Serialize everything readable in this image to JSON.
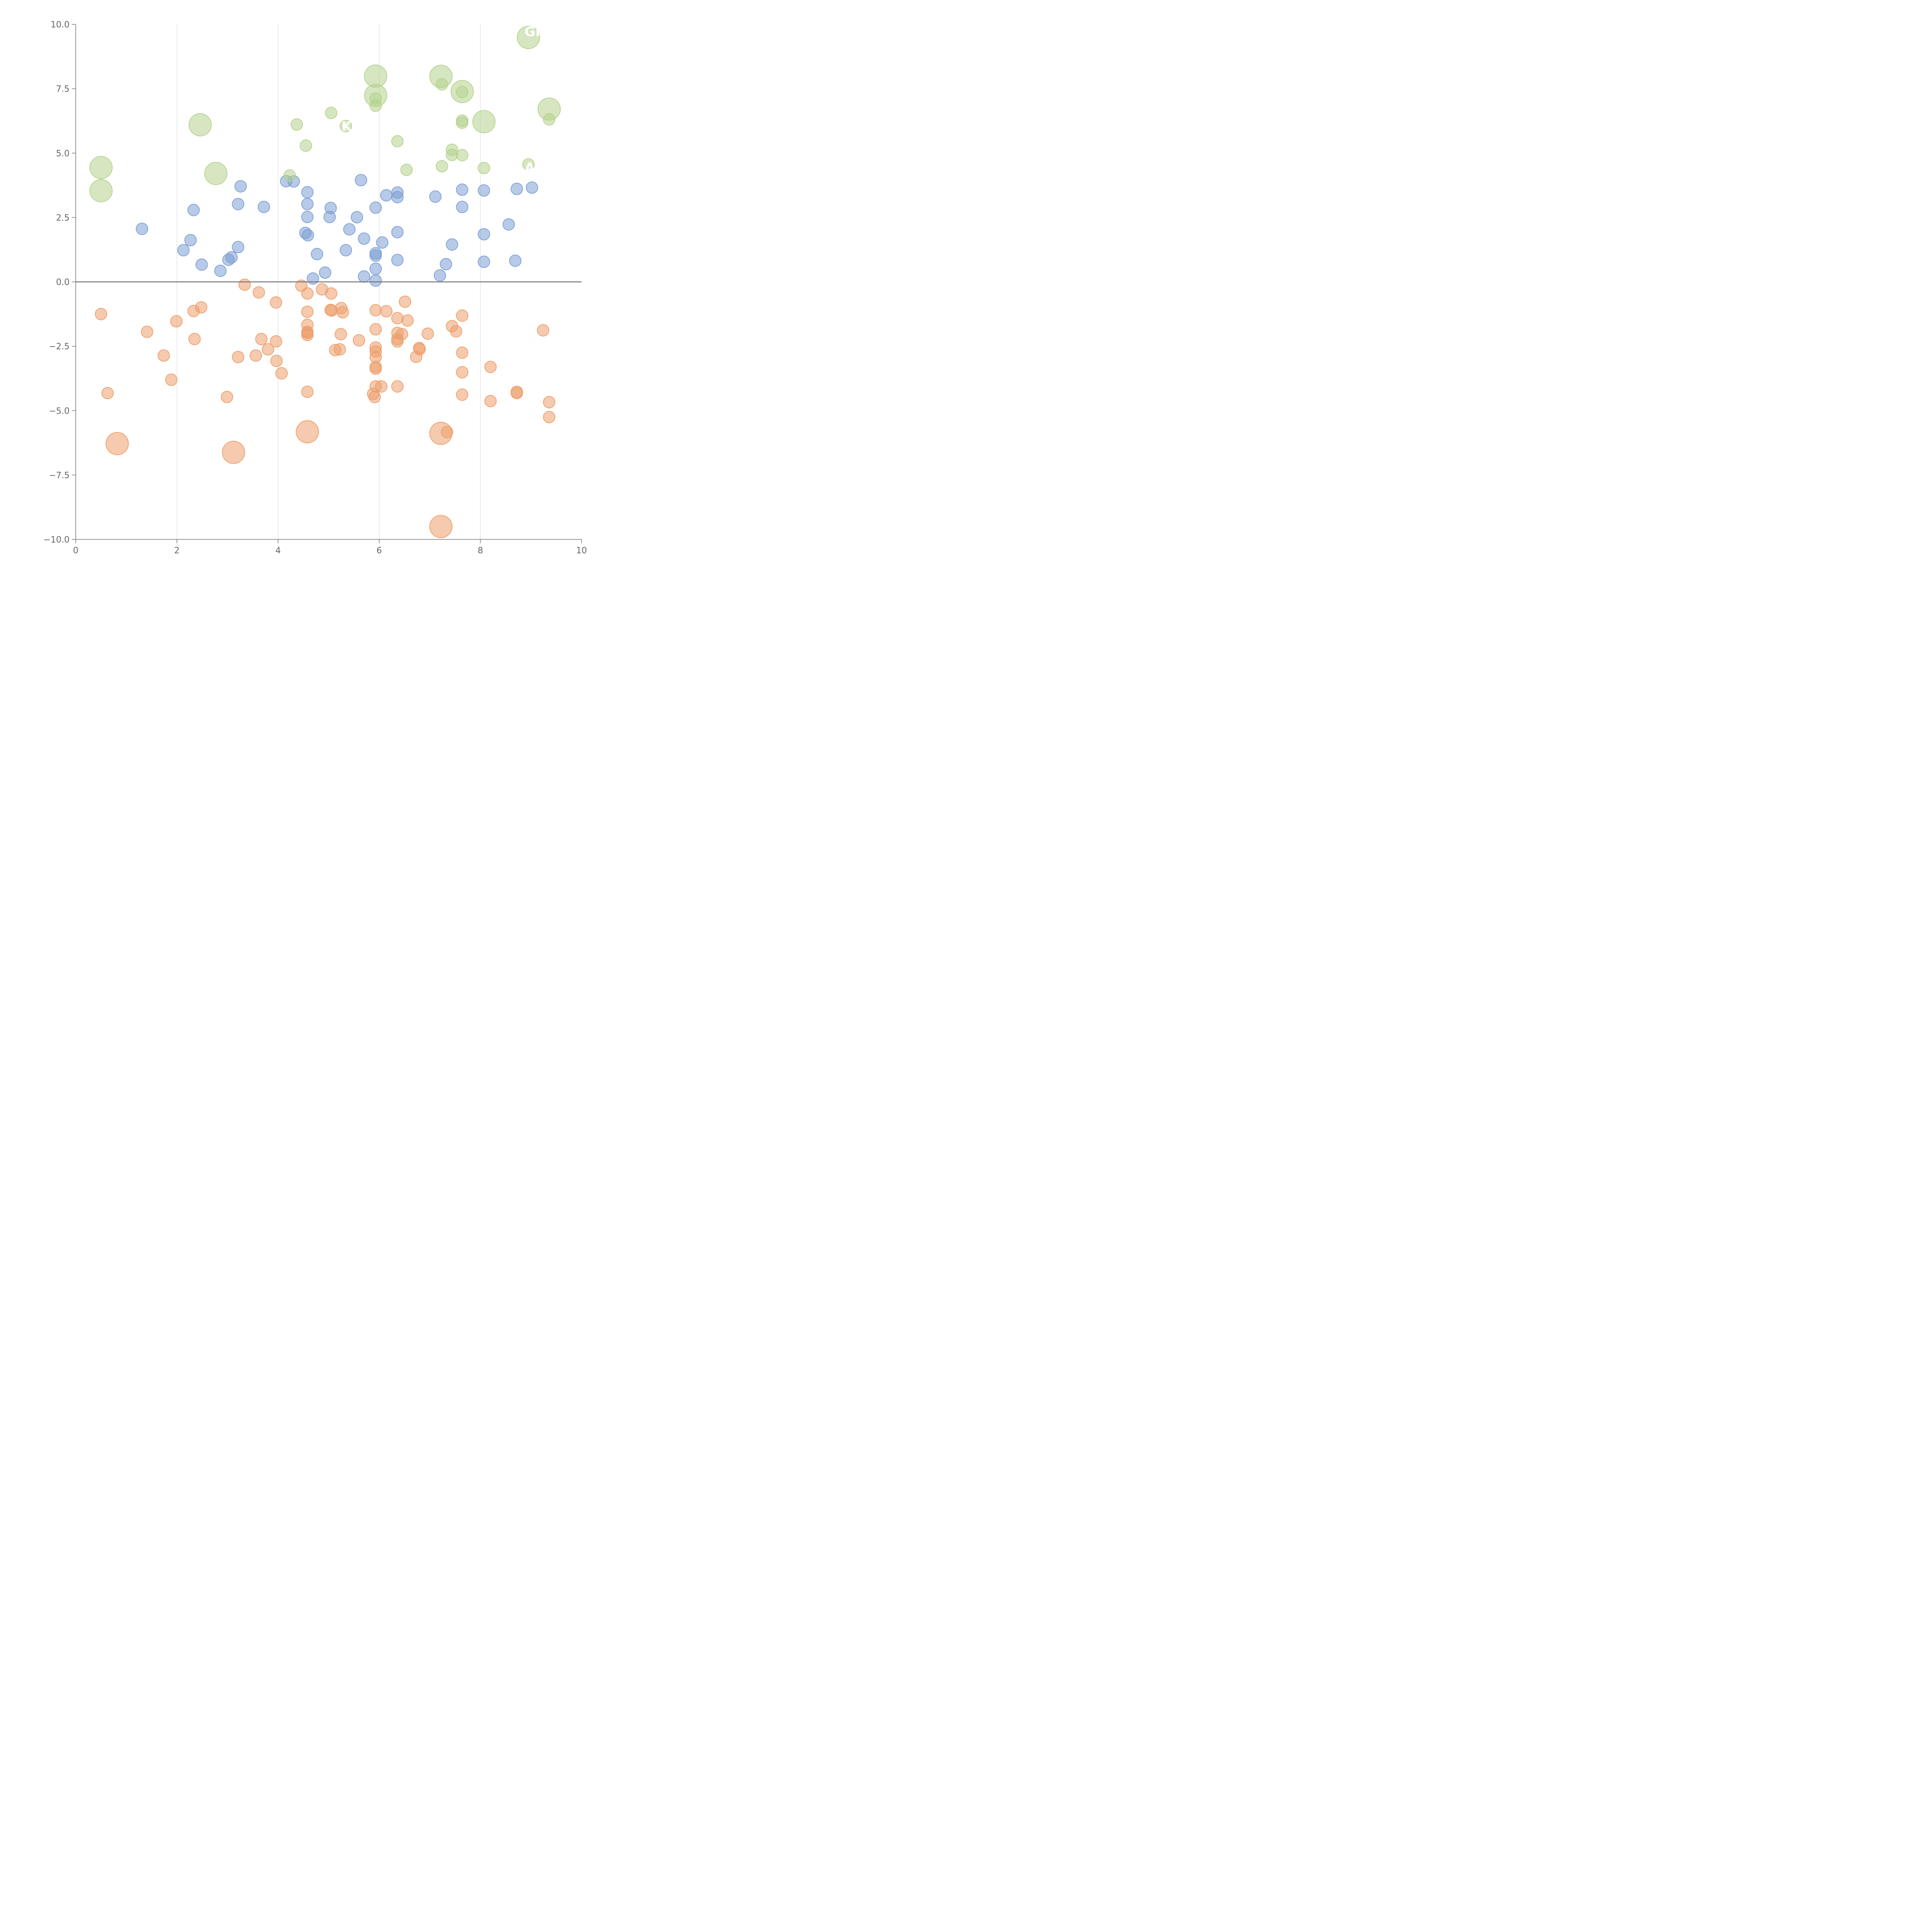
{
  "chart_data": {
    "type": "scatter",
    "title": "",
    "xlabel": "",
    "ylabel": "",
    "xlim": [
      0,
      10
    ],
    "ylim": [
      -10,
      10
    ],
    "x_ticks": [
      {
        "value": 0,
        "label": "0"
      },
      {
        "value": 2,
        "label": "2"
      },
      {
        "value": 4,
        "label": "4"
      },
      {
        "value": 6,
        "label": "6"
      },
      {
        "value": 8,
        "label": "8"
      },
      {
        "value": 10,
        "label": "10"
      }
    ],
    "y_ticks": [
      {
        "value": 10,
        "label": "10.0"
      },
      {
        "value": 7.5,
        "label": "7.5"
      },
      {
        "value": 5,
        "label": "5.0"
      },
      {
        "value": 2.5,
        "label": "2.5"
      },
      {
        "value": 0,
        "label": "0.0"
      },
      {
        "value": -2.5,
        "label": "−2.5"
      },
      {
        "value": -5,
        "label": "−5.0"
      },
      {
        "value": -7.5,
        "label": "−7.5"
      },
      {
        "value": -10,
        "label": "−10.0"
      }
    ],
    "grid": "vertical",
    "zero_line": true,
    "colors": {
      "blue": "#7c9fd4",
      "green": "#b5d18c",
      "orange": "#ec9f6c",
      "axis": "#777777",
      "grid": "#dddddd"
    },
    "annotations": [
      {
        "text": "GI",
        "x": 8.95,
        "y": 9.72
      },
      {
        "text": "K",
        "x": 5.33,
        "y": 6.05
      },
      {
        "text": "A",
        "x": 8.95,
        "y": 4.44
      }
    ],
    "series": [
      {
        "name": "blue",
        "color": "#7c9fd4",
        "size": "small",
        "points": [
          [
            1.31,
            2.06
          ],
          [
            2.13,
            1.23
          ],
          [
            2.27,
            1.62
          ],
          [
            2.33,
            2.79
          ],
          [
            2.49,
            0.67
          ],
          [
            2.86,
            0.43
          ],
          [
            3.02,
            0.86
          ],
          [
            3.08,
            0.95
          ],
          [
            3.21,
            1.35
          ],
          [
            3.21,
            3.02
          ],
          [
            3.26,
            3.71
          ],
          [
            3.72,
            2.91
          ],
          [
            4.16,
            3.91
          ],
          [
            4.31,
            3.9
          ],
          [
            4.54,
            1.9
          ],
          [
            4.58,
            3.48
          ],
          [
            4.58,
            3.02
          ],
          [
            4.58,
            2.52
          ],
          [
            4.59,
            1.81
          ],
          [
            4.69,
            0.13
          ],
          [
            4.77,
            1.08
          ],
          [
            4.93,
            0.36
          ],
          [
            5.02,
            2.52
          ],
          [
            5.04,
            2.87
          ],
          [
            5.34,
            1.23
          ],
          [
            5.41,
            2.04
          ],
          [
            5.56,
            2.51
          ],
          [
            5.64,
            3.95
          ],
          [
            5.7,
            1.68
          ],
          [
            5.7,
            0.21
          ],
          [
            5.93,
            2.88
          ],
          [
            5.93,
            1.11
          ],
          [
            5.93,
            1.02
          ],
          [
            5.93,
            0.51
          ],
          [
            5.93,
            0.05
          ],
          [
            6.06,
            1.53
          ],
          [
            6.14,
            3.36
          ],
          [
            6.36,
            3.47
          ],
          [
            6.36,
            3.29
          ],
          [
            6.36,
            1.93
          ],
          [
            6.36,
            0.85
          ],
          [
            7.11,
            3.31
          ],
          [
            7.2,
            0.25
          ],
          [
            7.32,
            0.69
          ],
          [
            7.44,
            1.45
          ],
          [
            7.64,
            3.58
          ],
          [
            7.64,
            2.91
          ],
          [
            8.07,
            3.55
          ],
          [
            8.07,
            1.85
          ],
          [
            8.07,
            0.78
          ],
          [
            8.56,
            2.23
          ],
          [
            8.69,
            0.82
          ],
          [
            8.72,
            3.61
          ],
          [
            9.02,
            3.66
          ]
        ]
      },
      {
        "name": "green",
        "color": "#b5d18c",
        "size": "mixed",
        "points": [
          [
            0.5,
            4.44,
            "L"
          ],
          [
            0.5,
            3.54,
            "L"
          ],
          [
            2.46,
            6.1,
            "L"
          ],
          [
            2.77,
            4.21,
            "L"
          ],
          [
            4.23,
            4.13,
            "S"
          ],
          [
            4.37,
            6.11,
            "S"
          ],
          [
            4.55,
            5.29,
            "S"
          ],
          [
            5.05,
            6.56,
            "S"
          ],
          [
            5.34,
            6.05,
            "S"
          ],
          [
            5.93,
            7.99,
            "L"
          ],
          [
            5.93,
            7.24,
            "L"
          ],
          [
            5.93,
            7.12,
            "S"
          ],
          [
            5.93,
            6.84,
            "S"
          ],
          [
            6.36,
            5.46,
            "S"
          ],
          [
            6.54,
            4.35,
            "S"
          ],
          [
            7.22,
            7.98,
            "L"
          ],
          [
            7.24,
            7.67,
            "S"
          ],
          [
            7.24,
            4.49,
            "S"
          ],
          [
            7.44,
            5.13,
            "S"
          ],
          [
            7.44,
            4.93,
            "S"
          ],
          [
            7.64,
            7.39,
            "L"
          ],
          [
            7.64,
            7.37,
            "S"
          ],
          [
            7.64,
            6.26,
            "S"
          ],
          [
            7.64,
            6.18,
            "S"
          ],
          [
            7.64,
            4.92,
            "S"
          ],
          [
            8.07,
            6.22,
            "L"
          ],
          [
            8.07,
            4.42,
            "S"
          ],
          [
            8.95,
            9.49,
            "L"
          ],
          [
            8.95,
            4.56,
            "S"
          ],
          [
            9.36,
            6.71,
            "L"
          ],
          [
            9.36,
            6.31,
            "S"
          ]
        ]
      },
      {
        "name": "orange",
        "color": "#ec9f6c",
        "size": "mixed",
        "points": [
          [
            0.5,
            -1.25,
            "S"
          ],
          [
            0.63,
            -4.32,
            "S"
          ],
          [
            0.82,
            -6.28,
            "L"
          ],
          [
            1.41,
            -1.94,
            "S"
          ],
          [
            1.74,
            -2.86,
            "S"
          ],
          [
            1.89,
            -3.8,
            "S"
          ],
          [
            1.99,
            -1.53,
            "S"
          ],
          [
            2.33,
            -1.13,
            "S"
          ],
          [
            2.35,
            -2.22,
            "S"
          ],
          [
            2.48,
            -0.99,
            "S"
          ],
          [
            2.99,
            -4.47,
            "S"
          ],
          [
            3.12,
            -6.62,
            "L"
          ],
          [
            3.21,
            -2.92,
            "S"
          ],
          [
            3.34,
            -0.11,
            "S"
          ],
          [
            3.56,
            -2.86,
            "S"
          ],
          [
            3.62,
            -0.41,
            "S"
          ],
          [
            3.67,
            -2.22,
            "S"
          ],
          [
            3.8,
            -2.62,
            "S"
          ],
          [
            3.96,
            -0.8,
            "S"
          ],
          [
            3.96,
            -2.31,
            "S"
          ],
          [
            3.97,
            -3.07,
            "S"
          ],
          [
            4.07,
            -3.55,
            "S"
          ],
          [
            4.46,
            -0.15,
            "S"
          ],
          [
            4.58,
            -0.45,
            "S"
          ],
          [
            4.58,
            -1.16,
            "S"
          ],
          [
            4.58,
            -1.67,
            "S"
          ],
          [
            4.58,
            -1.94,
            "S"
          ],
          [
            4.58,
            -2.06,
            "S"
          ],
          [
            4.58,
            -1.98,
            "S"
          ],
          [
            4.58,
            -4.27,
            "S"
          ],
          [
            4.58,
            -5.82,
            "L"
          ],
          [
            4.87,
            -0.29,
            "S"
          ],
          [
            5.04,
            -1.09,
            "S"
          ],
          [
            5.06,
            -1.11,
            "S"
          ],
          [
            5.05,
            -0.45,
            "S"
          ],
          [
            5.13,
            -2.65,
            "S"
          ],
          [
            5.22,
            -2.62,
            "S"
          ],
          [
            5.24,
            -2.03,
            "S"
          ],
          [
            5.25,
            -1.02,
            "S"
          ],
          [
            5.28,
            -1.18,
            "S"
          ],
          [
            5.6,
            -2.27,
            "S"
          ],
          [
            5.88,
            -4.35,
            "S"
          ],
          [
            5.91,
            -4.47,
            "S"
          ],
          [
            5.93,
            -1.1,
            "S"
          ],
          [
            5.93,
            -1.84,
            "S"
          ],
          [
            5.93,
            -2.55,
            "S"
          ],
          [
            5.93,
            -2.7,
            "S"
          ],
          [
            5.93,
            -2.92,
            "S"
          ],
          [
            5.93,
            -3.3,
            "S"
          ],
          [
            5.93,
            -3.37,
            "S"
          ],
          [
            5.93,
            -4.06,
            "S"
          ],
          [
            6.04,
            -4.06,
            "S"
          ],
          [
            6.14,
            -1.14,
            "S"
          ],
          [
            6.36,
            -1.41,
            "S"
          ],
          [
            6.36,
            -1.98,
            "S"
          ],
          [
            6.36,
            -2.22,
            "S"
          ],
          [
            6.36,
            -2.31,
            "S"
          ],
          [
            6.36,
            -4.06,
            "S"
          ],
          [
            6.45,
            -2.03,
            "S"
          ],
          [
            6.51,
            -0.77,
            "S"
          ],
          [
            6.56,
            -1.5,
            "S"
          ],
          [
            6.73,
            -2.91,
            "S"
          ],
          [
            6.79,
            -2.57,
            "S"
          ],
          [
            6.8,
            -2.61,
            "S"
          ],
          [
            6.96,
            -2.01,
            "S"
          ],
          [
            7.22,
            -5.88,
            "L"
          ],
          [
            7.22,
            -9.5,
            "L"
          ],
          [
            7.34,
            -5.83,
            "S"
          ],
          [
            7.44,
            -1.72,
            "S"
          ],
          [
            7.52,
            -1.92,
            "S"
          ],
          [
            7.64,
            -1.31,
            "S"
          ],
          [
            7.64,
            -2.75,
            "S"
          ],
          [
            7.64,
            -3.51,
            "S"
          ],
          [
            7.64,
            -4.38,
            "S"
          ],
          [
            8.2,
            -3.3,
            "S"
          ],
          [
            8.2,
            -4.63,
            "S"
          ],
          [
            8.72,
            -4.27,
            "S"
          ],
          [
            8.72,
            -4.32,
            "S"
          ],
          [
            9.24,
            -1.88,
            "S"
          ],
          [
            9.36,
            -4.67,
            "S"
          ],
          [
            9.36,
            -5.25,
            "S"
          ]
        ]
      }
    ]
  }
}
